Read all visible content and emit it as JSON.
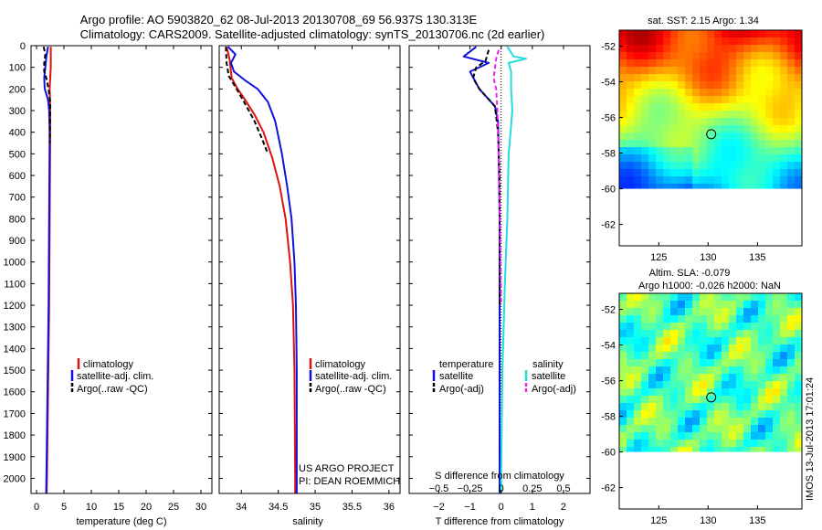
{
  "figure": {
    "title_line1": "Argo profile: AO 5903820_62 08-Jul-2013 20130708_69 56.937S 130.313E",
    "title_line2": "Climatology: CARS2009. Satellite-adjusted climatology: synTS_20130706.nc (2d earlier)",
    "project_line1": "US ARGO PROJECT",
    "project_line2": "PI: DEAN ROEMMICH",
    "imos_stamp": "IMOS 13-Jul-2013 17:01:24"
  },
  "colors": {
    "climatology": "#dd1111",
    "satellite": "#1111dd",
    "argo": "#000000",
    "satellite_salinity": "#22dddd",
    "argo_salinity": "#ee22ee"
  },
  "chart_data": [
    {
      "id": "temperature",
      "type": "line",
      "xlabel": "temperature (deg C)",
      "ylabel": "",
      "xlim": [
        -1,
        32
      ],
      "ylim": [
        2070,
        0
      ],
      "xticks": [
        0,
        5,
        10,
        15,
        20,
        25,
        30
      ],
      "xtick_labels": [
        "0",
        "5",
        "10",
        "15",
        "20",
        "25",
        "30"
      ],
      "yticks": [
        0,
        100,
        200,
        300,
        400,
        500,
        600,
        700,
        800,
        900,
        1000,
        1100,
        1200,
        1300,
        1400,
        1500,
        1600,
        1700,
        1800,
        1900,
        2000
      ],
      "ytick_labels": [
        "0",
        "100",
        "200",
        "300",
        "400",
        "500",
        "600",
        "700",
        "800",
        "900",
        "1000",
        "1100",
        "1200",
        "1300",
        "1400",
        "1500",
        "1600",
        "1700",
        "1800",
        "1900",
        "2000"
      ],
      "legend": [
        "climatology",
        "satellite-adj. clim.",
        "Argo(..raw -QC)"
      ],
      "series": [
        {
          "name": "climatology",
          "color_key": "climatology",
          "dash": "",
          "points": [
            [
              2.6,
              5
            ],
            [
              2.6,
              100
            ],
            [
              2.4,
              200
            ],
            [
              2.5,
              300
            ],
            [
              2.5,
              400
            ],
            [
              2.45,
              600
            ],
            [
              2.4,
              800
            ],
            [
              2.35,
              1000
            ],
            [
              2.3,
              1200
            ],
            [
              2.2,
              1400
            ],
            [
              2.1,
              1600
            ],
            [
              2.0,
              1800
            ],
            [
              1.9,
              2000
            ],
            [
              1.85,
              2070
            ]
          ]
        },
        {
          "name": "satellite-adj. clim.",
          "color_key": "satellite",
          "dash": "",
          "points": [
            [
              2.1,
              5
            ],
            [
              1.8,
              50
            ],
            [
              1.6,
              100
            ],
            [
              1.4,
              150
            ],
            [
              1.5,
              200
            ],
            [
              2.1,
              250
            ],
            [
              2.3,
              300
            ],
            [
              2.4,
              400
            ],
            [
              2.35,
              600
            ],
            [
              2.3,
              800
            ],
            [
              2.25,
              1000
            ],
            [
              2.2,
              1200
            ],
            [
              2.1,
              1400
            ],
            [
              2.0,
              1600
            ],
            [
              1.9,
              1800
            ],
            [
              1.8,
              2000
            ],
            [
              1.75,
              2070
            ]
          ]
        },
        {
          "name": "Argo(..raw -QC)",
          "color_key": "argo",
          "dash": "5,3",
          "points": [
            [
              1.3,
              5
            ],
            [
              1.6,
              40
            ],
            [
              1.4,
              80
            ],
            [
              1.4,
              120
            ],
            [
              1.9,
              160
            ],
            [
              2.3,
              220
            ],
            [
              2.5,
              260
            ],
            [
              2.45,
              350
            ],
            [
              2.4,
              450
            ]
          ]
        }
      ]
    },
    {
      "id": "salinity",
      "type": "line",
      "xlabel": "salinity",
      "ylabel": "",
      "xlim": [
        33.7,
        36.15
      ],
      "ylim": [
        2070,
        0
      ],
      "xticks": [
        34,
        34.5,
        35,
        35.5,
        36
      ],
      "xtick_labels": [
        "34",
        "34.5",
        "35",
        "35.5",
        "36"
      ],
      "legend": [
        "climatology",
        "satellite-adj. clim.",
        "Argo(..raw -QC)"
      ],
      "series": [
        {
          "name": "climatology",
          "color_key": "climatology",
          "dash": "",
          "points": [
            [
              33.8,
              5
            ],
            [
              33.84,
              60
            ],
            [
              33.87,
              150
            ],
            [
              33.95,
              200
            ],
            [
              34.05,
              250
            ],
            [
              34.18,
              320
            ],
            [
              34.3,
              400
            ],
            [
              34.42,
              520
            ],
            [
              34.52,
              650
            ],
            [
              34.6,
              800
            ],
            [
              34.66,
              1000
            ],
            [
              34.7,
              1200
            ],
            [
              34.72,
              1500
            ],
            [
              34.73,
              2000
            ],
            [
              34.73,
              2070
            ]
          ]
        },
        {
          "name": "satellite-adj. clim.",
          "color_key": "satellite",
          "dash": "",
          "points": [
            [
              33.82,
              5
            ],
            [
              33.92,
              40
            ],
            [
              33.86,
              80
            ],
            [
              33.9,
              120
            ],
            [
              34.05,
              160
            ],
            [
              34.22,
              200
            ],
            [
              34.36,
              260
            ],
            [
              34.46,
              350
            ],
            [
              34.55,
              500
            ],
            [
              34.62,
              650
            ],
            [
              34.68,
              800
            ],
            [
              34.72,
              1000
            ],
            [
              34.74,
              1200
            ],
            [
              34.75,
              1500
            ],
            [
              34.75,
              2000
            ],
            [
              34.75,
              2070
            ]
          ]
        },
        {
          "name": "Argo(..raw -QC)",
          "color_key": "argo",
          "dash": "5,3",
          "points": [
            [
              33.79,
              5
            ],
            [
              33.8,
              80
            ],
            [
              33.83,
              140
            ],
            [
              33.9,
              180
            ],
            [
              33.97,
              220
            ],
            [
              34.07,
              280
            ],
            [
              34.18,
              350
            ],
            [
              34.28,
              430
            ],
            [
              34.36,
              500
            ]
          ]
        }
      ]
    },
    {
      "id": "difference",
      "type": "line",
      "xlabel": "T difference from climatology",
      "xlabel_top": "S difference from climatology",
      "xlim": [
        -2.95,
        2.85
      ],
      "ylim": [
        2070,
        0
      ],
      "xticks": [
        -2,
        -1,
        0,
        1,
        2
      ],
      "xtick_labels": [
        "−2",
        "−1",
        "0",
        "1",
        "2"
      ],
      "sticks": [
        -0.5,
        -0.25,
        0,
        0.25,
        0.5
      ],
      "stick_labels": [
        "−0.5",
        "−0.25",
        "0",
        "0.25",
        "0.5"
      ],
      "s_scale": 4,
      "legend_left_title": "temperature",
      "legend_right_title": "salinity",
      "legend": [
        "satellite",
        "Argo(-adj)",
        "satellite",
        "Argo(-adj)"
      ],
      "series": [
        {
          "name": "temperature satellite",
          "color_key": "satellite",
          "dash": "",
          "points": [
            [
              -0.8,
              5
            ],
            [
              -1.2,
              50
            ],
            [
              -0.4,
              80
            ],
            [
              -1.0,
              120
            ],
            [
              -0.7,
              200
            ],
            [
              -0.2,
              280
            ],
            [
              -0.1,
              350
            ],
            [
              -0.08,
              500
            ],
            [
              -0.05,
              800
            ],
            [
              -0.05,
              1200
            ],
            [
              -0.05,
              1600
            ],
            [
              -0.05,
              2000
            ],
            [
              -0.05,
              2070
            ]
          ]
        },
        {
          "name": "temperature Argo(-adj)",
          "color_key": "argo",
          "dash": "5,3",
          "points": [
            [
              -0.4,
              20
            ],
            [
              -0.5,
              70
            ],
            [
              -0.8,
              100
            ],
            [
              -0.9,
              150
            ],
            [
              -0.7,
              200
            ],
            [
              -0.2,
              280
            ],
            [
              -0.1,
              400
            ],
            [
              -0.05,
              600
            ],
            [
              -0.05,
              900
            ],
            [
              -0.05,
              1200
            ]
          ]
        },
        {
          "name": "salinity satellite",
          "color_key": "satellite_salinity",
          "dash": "",
          "points": [
            [
              0.05,
              5
            ],
            [
              0.1,
              50
            ],
            [
              0.2,
              60
            ],
            [
              0.06,
              80
            ],
            [
              0.08,
              120
            ],
            [
              0.08,
              200
            ],
            [
              0.09,
              300
            ],
            [
              0.06,
              500
            ],
            [
              0.05,
              800
            ],
            [
              0.03,
              1100
            ],
            [
              0.01,
              1500
            ],
            [
              0.0,
              2000
            ],
            [
              0.0,
              2070
            ]
          ]
        },
        {
          "name": "salinity Argo(-adj)",
          "color_key": "argo_salinity",
          "dash": "5,3",
          "points": [
            [
              -0.02,
              20
            ],
            [
              -0.04,
              60
            ],
            [
              -0.06,
              150
            ],
            [
              -0.04,
              200
            ],
            [
              -0.03,
              300
            ],
            [
              -0.02,
              500
            ],
            [
              -0.01,
              800
            ],
            [
              0.0,
              1200
            ]
          ]
        }
      ]
    },
    {
      "id": "sst_map",
      "type": "heatmap",
      "title": "sat. SST: 2.15 Argo: 1.34",
      "xlim": [
        121,
        139.5
      ],
      "ylim": [
        -63.2,
        -51.1
      ],
      "xticks": [
        125,
        130,
        135
      ],
      "xtick_labels": [
        "125",
        "130",
        "135"
      ],
      "yticks": [
        -52,
        -54,
        -56,
        -58,
        -60,
        -62
      ],
      "ytick_labels": [
        "-52",
        "-54",
        "-56",
        "-58",
        "-60",
        "-62"
      ],
      "data_lat_min": -60,
      "marker": {
        "lon": 130.313,
        "lat": -56.937
      }
    },
    {
      "id": "sla_map",
      "type": "heatmap",
      "title_line1": "Altim. SLA: -0.079",
      "title_line2": "Argo h1000: -0.026 h2000: NaN",
      "xlim": [
        121,
        139.5
      ],
      "ylim": [
        -63.2,
        -51.1
      ],
      "xticks": [
        125,
        130,
        135
      ],
      "xtick_labels": [
        "125",
        "130",
        "135"
      ],
      "yticks": [
        -52,
        -54,
        -56,
        -58,
        -60,
        -62
      ],
      "ytick_labels": [
        "-52",
        "-54",
        "-56",
        "-58",
        "-60",
        "-62"
      ],
      "data_lat_min": -60,
      "marker": {
        "lon": 130.313,
        "lat": -56.937
      }
    }
  ]
}
